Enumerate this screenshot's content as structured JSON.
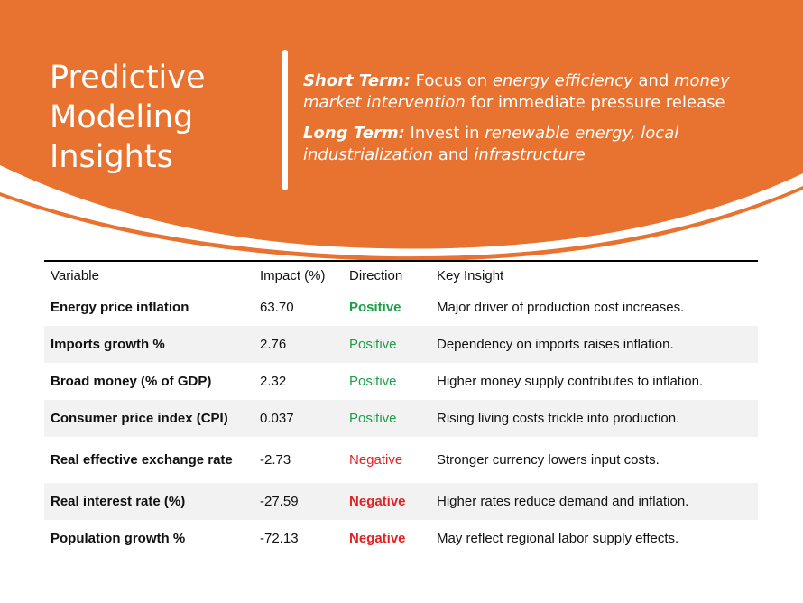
{
  "header": {
    "title_lines": [
      "Predictive",
      "Modeling",
      "Insights"
    ],
    "short_term": {
      "label": "Short Term:",
      "t1": " Focus on ",
      "em1": "energy efficiency",
      "t2": " and ",
      "em2": "money market intervention",
      "t3": " for immediate pressure release"
    },
    "long_term": {
      "label": "Long Term:",
      "t1": " Invest in ",
      "em1": "renewable energy, local industrialization",
      "t2": " and ",
      "em2": "infrastructure"
    }
  },
  "colors": {
    "accent": "#E8722F",
    "positive": "#1E9E4A",
    "negative": "#E02424",
    "row_shade": "#F2F2F2"
  },
  "table": {
    "headers": [
      "Variable",
      "Impact (%)",
      "Direction",
      "Key Insight"
    ],
    "rows": [
      {
        "variable": "Energy price inflation",
        "impact": "63.70",
        "direction": "Positive",
        "insight": "Major driver of production cost increases."
      },
      {
        "variable": "Imports growth %",
        "impact": "2.76",
        "direction": "Positive",
        "insight": "Dependency on imports raises inflation."
      },
      {
        "variable": "Broad money (% of GDP)",
        "impact": "2.32",
        "direction": "Positive",
        "insight": "Higher money supply contributes to inflation."
      },
      {
        "variable": "Consumer price index (CPI)",
        "impact": "0.037",
        "direction": "Positive",
        "insight": "Rising living costs trickle into production."
      },
      {
        "variable": "Real effective exchange rate",
        "impact": "-2.73",
        "direction": "Negative",
        "insight": "Stronger currency lowers input costs."
      },
      {
        "variable": "Real interest rate (%)",
        "impact": "-27.59",
        "direction": "Negative",
        "insight": "Higher rates reduce demand and inflation."
      },
      {
        "variable": "Population growth %",
        "impact": "-72.13",
        "direction": "Negative",
        "insight": "May reflect regional labor supply effects."
      }
    ]
  }
}
